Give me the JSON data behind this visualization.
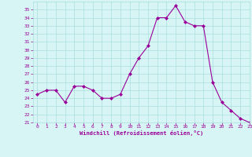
{
  "x": [
    0,
    1,
    2,
    3,
    4,
    5,
    6,
    7,
    8,
    9,
    10,
    11,
    12,
    13,
    14,
    15,
    16,
    17,
    18,
    19,
    20,
    21,
    22,
    23
  ],
  "y": [
    24.5,
    25.0,
    25.0,
    23.5,
    25.5,
    25.5,
    25.0,
    24.0,
    24.0,
    24.5,
    27.0,
    29.0,
    30.5,
    34.0,
    34.0,
    35.5,
    33.5,
    33.0,
    33.0,
    26.0,
    23.5,
    22.5,
    21.5,
    21.0
  ],
  "line_color": "#990099",
  "marker_color": "#990099",
  "bg_color": "#d8f5f5",
  "grid_color": "#aadddd",
  "xlabel": "Windchill (Refroidissement éolien,°C)",
  "xlabel_color": "#990099",
  "xtick_color": "#990099",
  "ytick_color": "#990099",
  "ylim": [
    21,
    36
  ],
  "xlim": [
    -0.5,
    23
  ],
  "yticks": [
    21,
    22,
    23,
    24,
    25,
    26,
    27,
    28,
    29,
    30,
    31,
    32,
    33,
    34,
    35
  ],
  "xticks": [
    0,
    1,
    2,
    3,
    4,
    5,
    6,
    7,
    8,
    9,
    10,
    11,
    12,
    13,
    14,
    15,
    16,
    17,
    18,
    19,
    20,
    21,
    22,
    23
  ]
}
